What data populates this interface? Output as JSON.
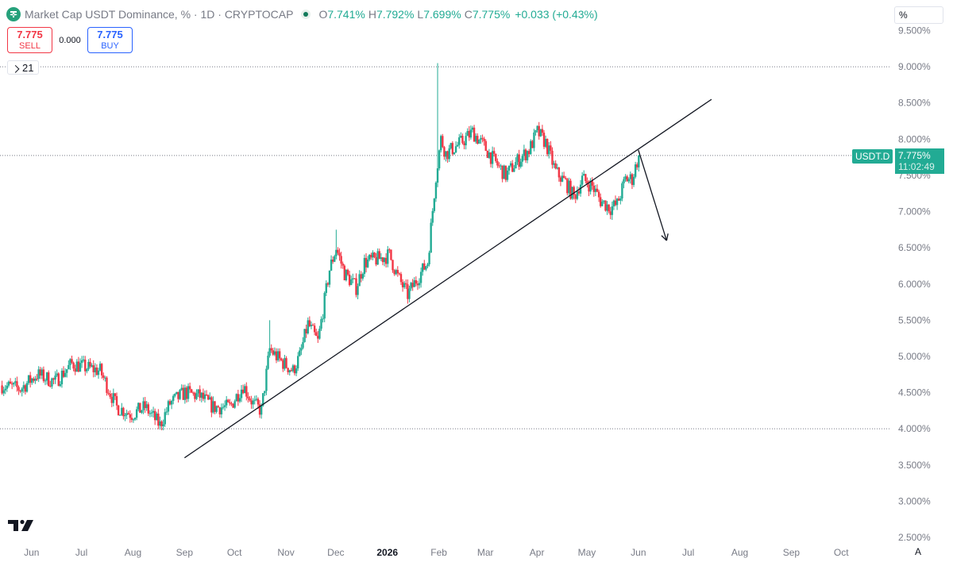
{
  "header": {
    "title": "Market Cap USDT Dominance, % · 1D · CRYPTOCAP",
    "ohlc": [
      {
        "k": "O",
        "v": "7.741%"
      },
      {
        "k": "H",
        "v": "7.792%"
      },
      {
        "k": "L",
        "v": "7.699%"
      },
      {
        "k": "C",
        "v": "7.775%"
      }
    ],
    "change": "+0.033 (+0.43%)"
  },
  "trade": {
    "sell_price": "7.775",
    "sell_label": "SELL",
    "spread": "0.000",
    "buy_price": "7.775",
    "buy_label": "BUY"
  },
  "indicator_pill": "21",
  "unit_label": "%",
  "symbol_tag": "USDT.D",
  "last_price": "7.775%",
  "countdown": "11:02:49",
  "auto_label": "A",
  "colors": {
    "up": "#22ab94",
    "down": "#f23645",
    "accent": "#2962ff"
  },
  "icons": [
    "tether-logo-icon",
    "tradingview-logo-icon",
    "chevron-down-icon"
  ],
  "chart_data": {
    "type": "candlestick",
    "symbol": "USDT.D",
    "timeframe": "1D",
    "ylim": [
      2.5,
      9.5
    ],
    "y_ticks": [
      "9.500%",
      "9.000%",
      "8.500%",
      "8.000%",
      "7.500%",
      "7.000%",
      "6.500%",
      "6.000%",
      "5.500%",
      "5.000%",
      "4.500%",
      "4.000%",
      "3.500%",
      "3.000%",
      "2.500%"
    ],
    "y_tick_values": [
      9.5,
      9.0,
      8.5,
      8.0,
      7.5,
      7.0,
      6.5,
      6.0,
      5.5,
      5.0,
      4.5,
      4.0,
      3.5,
      3.0,
      2.5
    ],
    "x_ticks": [
      "Jun",
      "Jul",
      "Aug",
      "Sep",
      "Oct",
      "Nov",
      "Dec",
      "2026",
      "Feb",
      "Mar",
      "Apr",
      "May",
      "Jun",
      "Jul",
      "Aug",
      "Sep",
      "Oct"
    ],
    "x_tick_dates": [
      "2025-06-01",
      "2025-07-01",
      "2025-08-01",
      "2025-09-01",
      "2025-10-01",
      "2025-11-01",
      "2025-12-01",
      "2026-01-01",
      "2026-02-01",
      "2026-03-01",
      "2026-04-01",
      "2026-05-01",
      "2026-06-01",
      "2026-07-01",
      "2026-08-01",
      "2026-09-01",
      "2026-10-01"
    ],
    "x_range": [
      "2025-05-13",
      "2026-10-31"
    ],
    "close_path": [
      [
        "2025-05-14",
        4.6
      ],
      [
        "2025-05-25",
        4.55
      ],
      [
        "2025-06-04",
        4.75
      ],
      [
        "2025-06-15",
        4.65
      ],
      [
        "2025-06-25",
        4.9
      ],
      [
        "2025-07-03",
        4.85
      ],
      [
        "2025-07-12",
        4.8
      ],
      [
        "2025-07-22",
        4.3
      ],
      [
        "2025-07-31",
        4.2
      ],
      [
        "2025-08-08",
        4.3
      ],
      [
        "2025-08-17",
        4.05
      ],
      [
        "2025-08-23",
        4.35
      ],
      [
        "2025-09-01",
        4.5
      ],
      [
        "2025-09-10",
        4.45
      ],
      [
        "2025-09-18",
        4.3
      ],
      [
        "2025-09-28",
        4.3
      ],
      [
        "2025-10-06",
        4.6
      ],
      [
        "2025-10-12",
        4.35
      ],
      [
        "2025-10-17",
        4.25
      ],
      [
        "2025-10-22",
        5.1
      ],
      [
        "2025-10-28",
        4.95
      ],
      [
        "2025-11-05",
        4.8
      ],
      [
        "2025-11-09",
        5.0
      ],
      [
        "2025-11-14",
        5.45
      ],
      [
        "2025-11-20",
        5.2
      ],
      [
        "2025-11-27",
        6.2
      ],
      [
        "2025-12-01",
        6.5
      ],
      [
        "2025-12-06",
        6.15
      ],
      [
        "2025-12-13",
        5.95
      ],
      [
        "2025-12-18",
        6.3
      ],
      [
        "2025-12-27",
        6.35
      ],
      [
        "2026-01-02",
        6.4
      ],
      [
        "2026-01-07",
        6.1
      ],
      [
        "2026-01-13",
        5.85
      ],
      [
        "2026-01-18",
        6.05
      ],
      [
        "2026-01-25",
        6.3
      ],
      [
        "2026-01-30",
        7.5
      ],
      [
        "2026-02-02",
        8.0
      ],
      [
        "2026-02-05",
        7.8
      ],
      [
        "2026-02-14",
        7.95
      ],
      [
        "2026-02-21",
        8.1
      ],
      [
        "2026-02-28",
        7.9
      ],
      [
        "2026-03-06",
        7.7
      ],
      [
        "2026-03-13",
        7.5
      ],
      [
        "2026-03-20",
        7.7
      ],
      [
        "2026-03-27",
        7.85
      ],
      [
        "2026-04-01",
        8.1
      ],
      [
        "2026-04-06",
        7.95
      ],
      [
        "2026-04-12",
        7.55
      ],
      [
        "2026-04-18",
        7.4
      ],
      [
        "2026-04-23",
        7.2
      ],
      [
        "2026-04-28",
        7.45
      ],
      [
        "2026-05-04",
        7.35
      ],
      [
        "2026-05-09",
        7.15
      ],
      [
        "2026-05-15",
        7.05
      ],
      [
        "2026-05-19",
        7.1
      ],
      [
        "2026-05-24",
        7.45
      ],
      [
        "2026-05-28",
        7.45
      ],
      [
        "2026-06-01",
        7.775
      ]
    ],
    "trendline": {
      "from": [
        "2025-09-01",
        3.6
      ],
      "to": [
        "2026-07-15",
        8.55
      ]
    },
    "projection_arrow": {
      "from": [
        "2026-06-01",
        7.85
      ],
      "to": [
        "2026-06-18",
        6.6
      ]
    },
    "horizontal_levels": [
      9.0,
      4.0,
      7.775
    ],
    "last_price": 7.775
  }
}
